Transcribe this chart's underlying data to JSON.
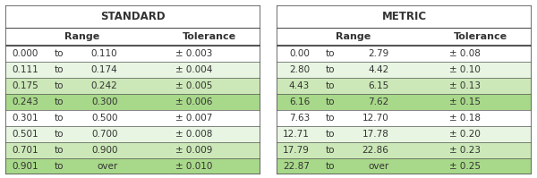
{
  "standard_title": "STANDARD",
  "metric_title": "METRIC",
  "standard_rows": [
    [
      "0.000",
      "to",
      "0.110",
      "± 0.003"
    ],
    [
      "0.111",
      "to",
      "0.174",
      "± 0.004"
    ],
    [
      "0.175",
      "to",
      "0.242",
      "± 0.005"
    ],
    [
      "0.243",
      "to",
      "0.300",
      "± 0.006"
    ],
    [
      "0.301",
      "to",
      "0.500",
      "± 0.007"
    ],
    [
      "0.501",
      "to",
      "0.700",
      "± 0.008"
    ],
    [
      "0.701",
      "to",
      "0.900",
      "± 0.009"
    ],
    [
      "0.901",
      "to",
      "over",
      "± 0.010"
    ]
  ],
  "metric_rows": [
    [
      "0.00",
      "to",
      "2.79",
      "± 0.08"
    ],
    [
      "2.80",
      "to",
      "4.42",
      "± 0.10"
    ],
    [
      "4.43",
      "to",
      "6.15",
      "± 0.13"
    ],
    [
      "6.16",
      "to",
      "7.62",
      "± 0.15"
    ],
    [
      "7.63",
      "to",
      "12.70",
      "± 0.18"
    ],
    [
      "12.71",
      "to",
      "17.78",
      "± 0.20"
    ],
    [
      "17.79",
      "to",
      "22.86",
      "± 0.23"
    ],
    [
      "22.87",
      "to",
      "over",
      "± 0.25"
    ]
  ],
  "row_colors": [
    "#ffffff",
    "#e8f5e2",
    "#cce8b8",
    "#a8d88a",
    "#ffffff",
    "#e8f5e2",
    "#cce8b8",
    "#a8d88a"
  ],
  "border_color": "#555555",
  "text_color": "#333333",
  "title_fontsize": 8.5,
  "header_fontsize": 8,
  "cell_fontsize": 7.5,
  "fig_bg": "#ffffff",
  "gap_color": "#ffffff"
}
